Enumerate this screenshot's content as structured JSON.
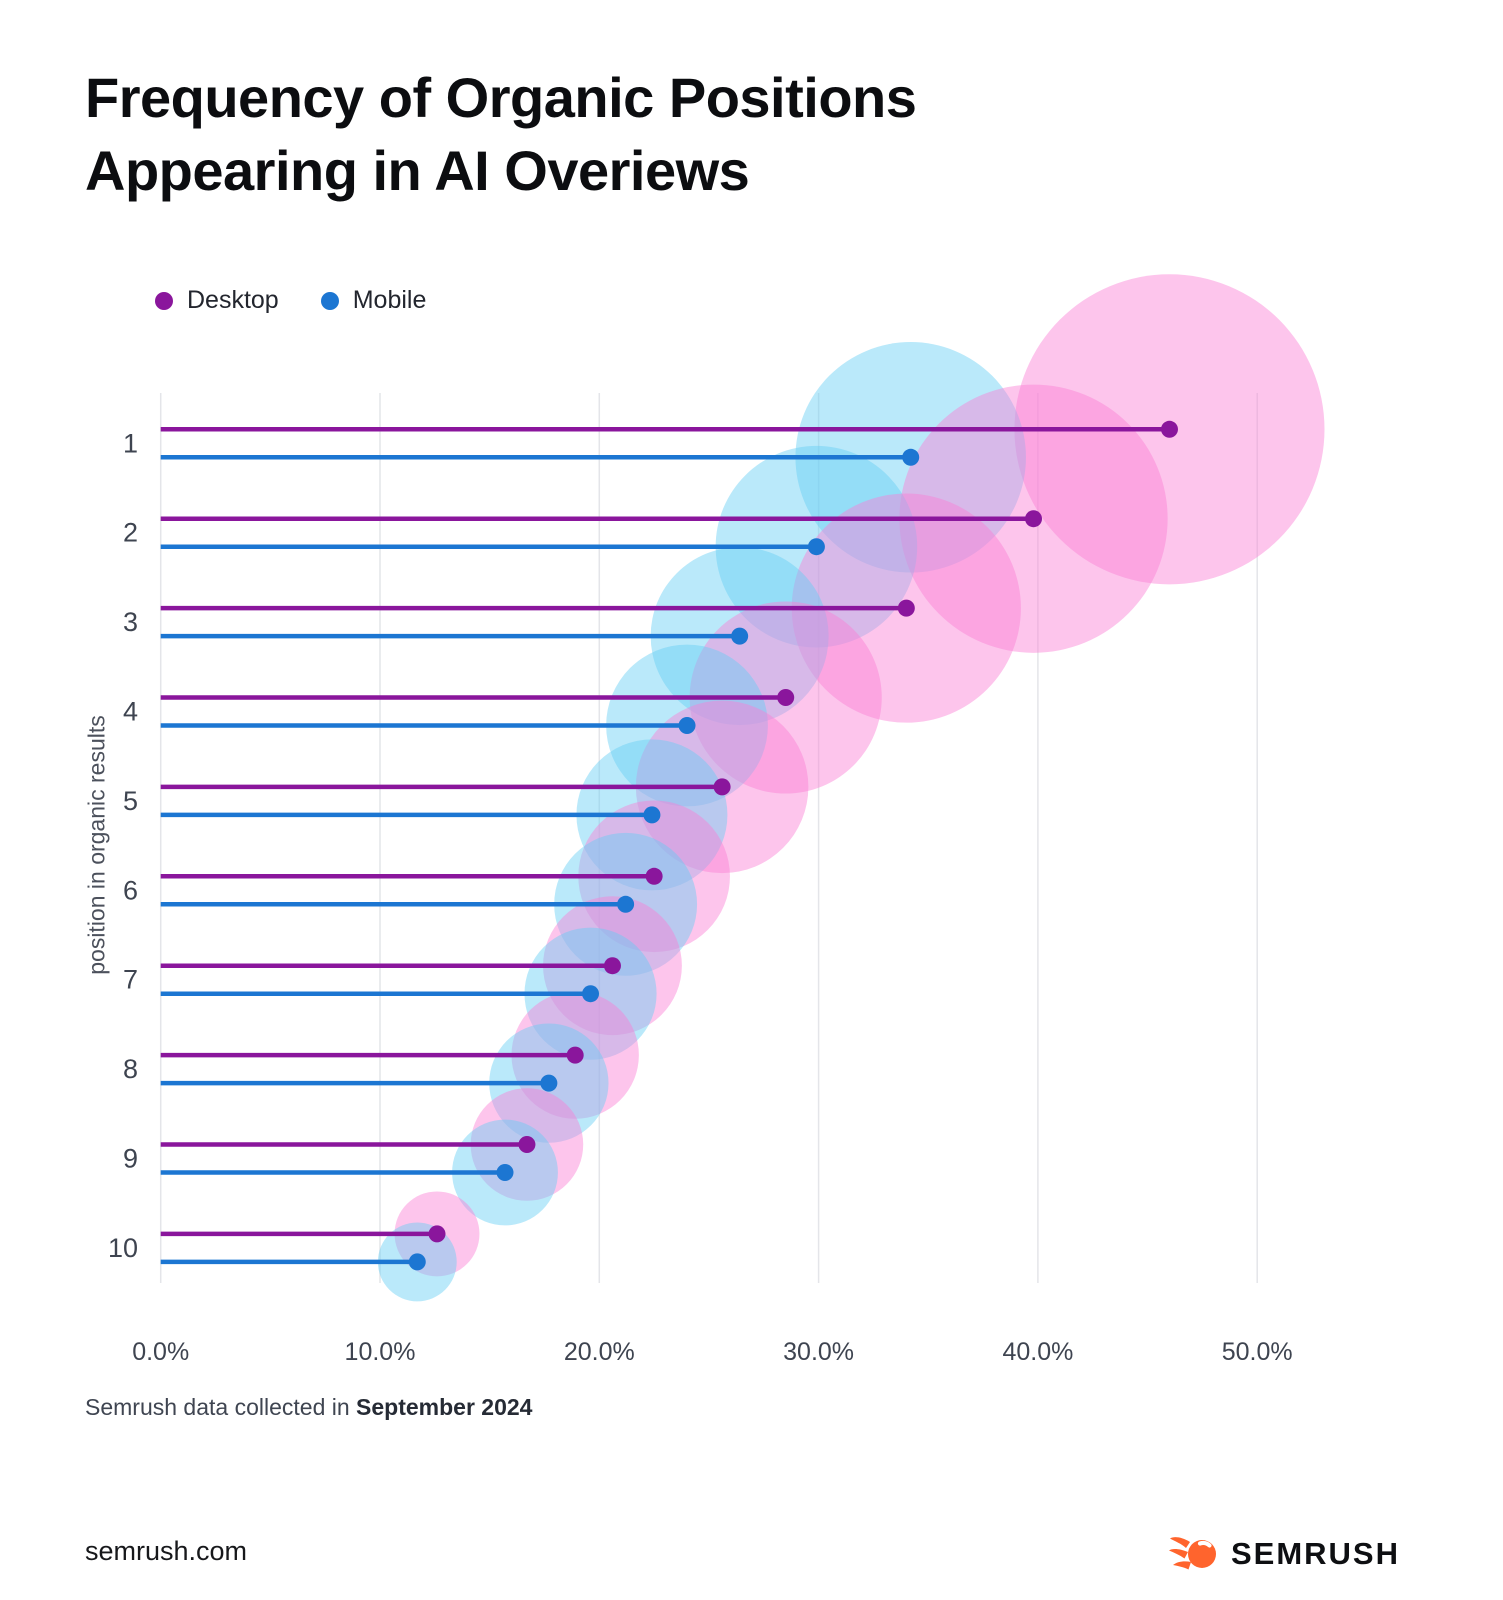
{
  "title": {
    "line1": "Frequency of Organic Positions",
    "line2": "Appearing in AI Overiews"
  },
  "legend": [
    {
      "label": "Desktop",
      "color": "#8A169C"
    },
    {
      "label": "Mobile",
      "color": "#1C76D2"
    }
  ],
  "footer": {
    "prefix": "Semrush data collected in",
    "bold": "September 2024"
  },
  "site": "semrush.com",
  "logo": {
    "text": "SEMRUSH",
    "icon_color": "#FF642D"
  },
  "chart_data": {
    "type": "lollipop-bubble",
    "title": "Frequency of Organic Positions Appearing in AI Overiews",
    "xlabel": "",
    "ylabel": "position in organic results",
    "categories": [
      "1",
      "2",
      "3",
      "4",
      "5",
      "6",
      "7",
      "8",
      "9",
      "10"
    ],
    "x_ticks": [
      0,
      10,
      20,
      30,
      40,
      50
    ],
    "x_tick_labels": [
      "0.0%",
      "10.0%",
      "20.0%",
      "30.0%",
      "40.0%",
      "50.0%"
    ],
    "xlim": [
      0,
      52
    ],
    "grid": true,
    "legend_position": "top-left",
    "bubble_size": "proportional to value",
    "series": [
      {
        "name": "Desktop",
        "color": "#8A169C",
        "bubble_color": "rgba(251,127,212,0.45)",
        "values": [
          46.0,
          39.8,
          34.0,
          28.5,
          25.6,
          22.5,
          20.6,
          18.9,
          16.7,
          12.6
        ]
      },
      {
        "name": "Mobile",
        "color": "#1C76D2",
        "bubble_color": "rgba(102,207,244,0.45)",
        "values": [
          34.2,
          29.9,
          26.4,
          24.0,
          22.4,
          21.2,
          19.6,
          17.7,
          15.7,
          11.7
        ]
      }
    ]
  }
}
